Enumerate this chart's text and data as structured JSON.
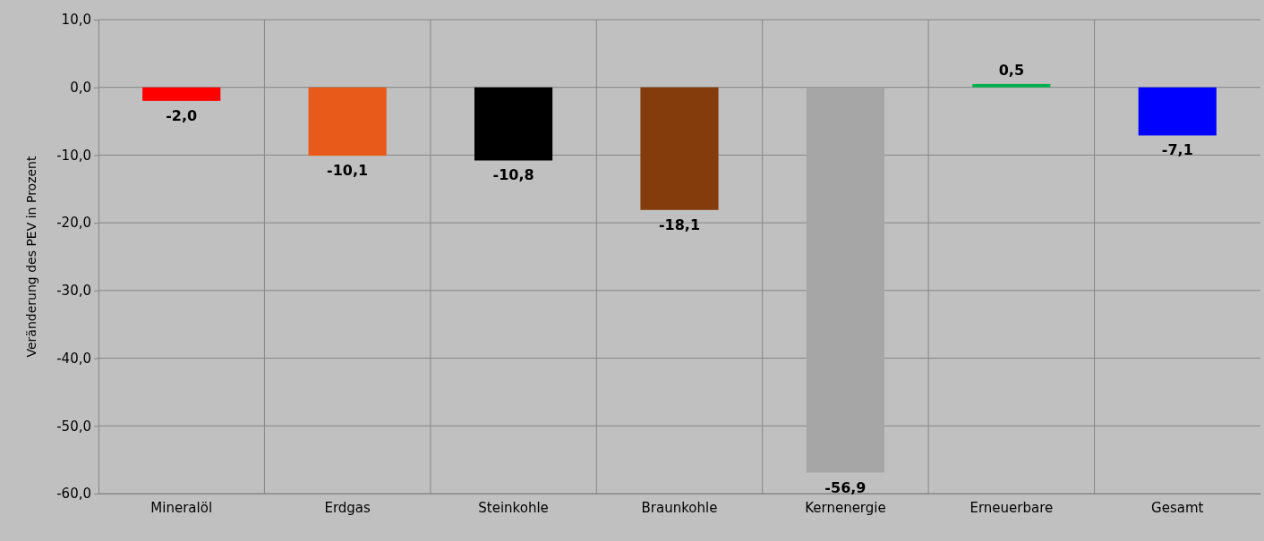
{
  "chart_data": {
    "type": "bar",
    "ylabel": "Veränderung des PEV in Prozent",
    "categories": [
      "Mineralöl",
      "Erdgas",
      "Steinkohle",
      "Braunkohle",
      "Kernenergie",
      "Erneuerbare",
      "Gesamt"
    ],
    "values": [
      -2.0,
      -10.1,
      -10.8,
      -18.1,
      -56.9,
      0.5,
      -7.1
    ],
    "colors": [
      "#ff0000",
      "#e85a19",
      "#000000",
      "#843c0c",
      "#a6a6a6",
      "#00b050",
      "#0000ff"
    ],
    "value_labels": [
      "-2,0",
      "-10,1",
      "-10,8",
      "-18,1",
      "-56,9",
      "0,5",
      "-7,1"
    ],
    "ylim": [
      -60,
      10
    ],
    "yticks": [
      {
        "value": 10,
        "label": "10,0"
      },
      {
        "value": 0,
        "label": "0,0"
      },
      {
        "value": -10,
        "label": "-10,0"
      },
      {
        "value": -20,
        "label": "-20,0"
      },
      {
        "value": -30,
        "label": "-30,0"
      },
      {
        "value": -40,
        "label": "-40,0"
      },
      {
        "value": -50,
        "label": "-50,0"
      },
      {
        "value": -60,
        "label": "-60,0"
      }
    ],
    "grid": true
  }
}
